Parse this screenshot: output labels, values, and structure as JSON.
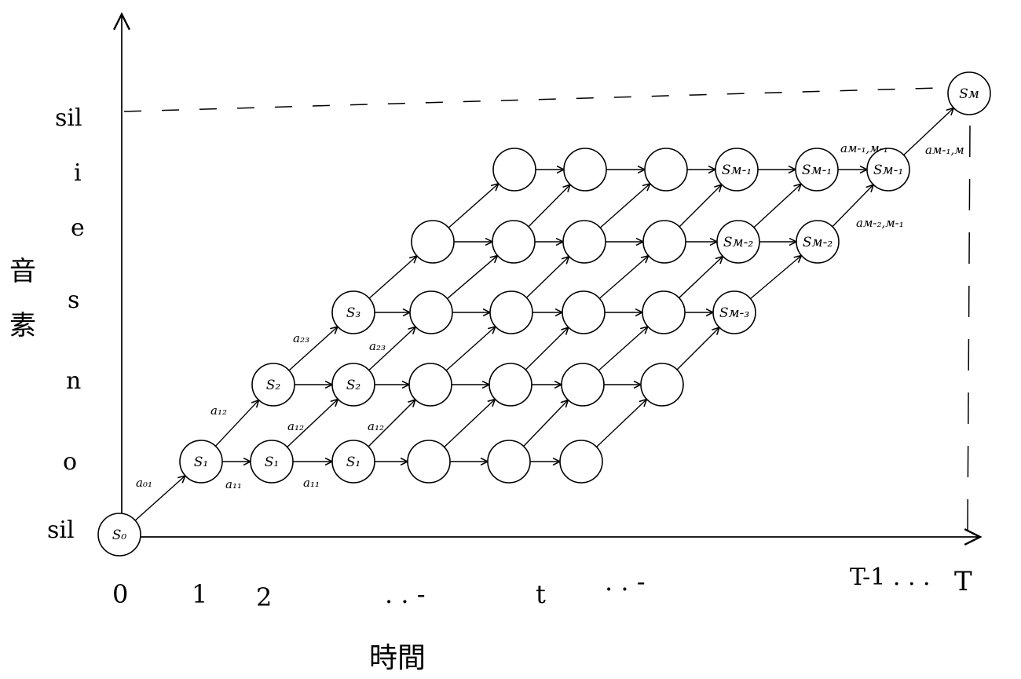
{
  "y_labels": [
    "sil",
    "o",
    "n",
    "s",
    "e",
    "i",
    "sil"
  ],
  "x_labels": {
    "zero": "0",
    "one": "1",
    "two": "2",
    "dots1": ". . -",
    "t": "t",
    "dots2": ". . -",
    "t_minus_1": "T-1 . . .",
    "T": "T"
  },
  "axis_titles": {
    "y": [
      "音",
      "素"
    ],
    "x": "時間"
  },
  "nodes": {
    "s0": "S₀",
    "sM": "Sм",
    "r1": [
      "S₁",
      "S₁",
      "S₁",
      "",
      "",
      ""
    ],
    "r2": [
      "S₂",
      "S₂",
      "",
      "",
      "",
      ""
    ],
    "r3": [
      "S₃",
      "",
      "",
      "",
      "",
      "Sм-₃"
    ],
    "r4": [
      "",
      "",
      "",
      "",
      "Sм-₂",
      "Sм-₂"
    ],
    "r5": [
      "",
      "",
      "",
      "Sм-₁",
      "Sм-₁",
      "Sм-₁"
    ]
  },
  "edge_labels": {
    "a01": "a₀₁",
    "a11_a": "a₁₁",
    "a11_b": "a₁₁",
    "a12_a": "a₁₂",
    "a12_b": "a₁₂",
    "a12_c": "a₁₂",
    "a23_a": "a₂₃",
    "a23_b": "a₂₃",
    "am1m1": "aм-₁,м-₁",
    "am1m": "aм-₁,м",
    "am2m1": "aм-₂,м-₁"
  }
}
